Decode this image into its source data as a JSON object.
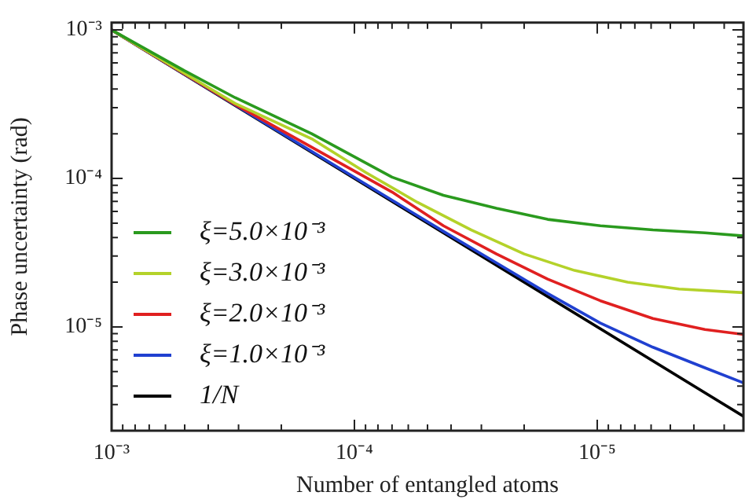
{
  "chart_data": {
    "type": "line",
    "xlabel": "Number of entangled atoms",
    "ylabel": "Phase uncertainty (rad)",
    "log": "xy",
    "grid": false,
    "legend": "bottom left",
    "marker": "none",
    "line_style": "solid",
    "xlim": [
      0.001,
      2.5e-06
    ],
    "ylim": [
      2e-06,
      0.00112
    ],
    "xticks": [
      {
        "value": 0.001,
        "label": "10⁻³"
      },
      {
        "value": 0.0009,
        "label": null
      },
      {
        "value": 0.0008,
        "label": null
      },
      {
        "value": 0.0007,
        "label": null
      },
      {
        "value": 0.0006,
        "label": null
      },
      {
        "value": 0.0005,
        "label": null
      },
      {
        "value": 0.0004,
        "label": null
      },
      {
        "value": 0.0003,
        "label": null
      },
      {
        "value": 0.0002,
        "label": null
      },
      {
        "value": 0.0001,
        "label": "10⁻⁴"
      },
      {
        "value": 9e-05,
        "label": null
      },
      {
        "value": 8e-05,
        "label": null
      },
      {
        "value": 7e-05,
        "label": null
      },
      {
        "value": 6e-05,
        "label": null
      },
      {
        "value": 5e-05,
        "label": null
      },
      {
        "value": 4e-05,
        "label": null
      },
      {
        "value": 3e-05,
        "label": null
      },
      {
        "value": 2e-05,
        "label": null
      },
      {
        "value": 1e-05,
        "label": "10⁻⁵"
      },
      {
        "value": 9e-06,
        "label": null
      },
      {
        "value": 8e-06,
        "label": null
      },
      {
        "value": 7e-06,
        "label": null
      },
      {
        "value": 6e-06,
        "label": null
      },
      {
        "value": 5e-06,
        "label": null
      },
      {
        "value": 4e-06,
        "label": null
      },
      {
        "value": 3e-06,
        "label": null
      }
    ],
    "yticks": [
      {
        "value": 0.001,
        "label": "10⁻³"
      },
      {
        "value": 0.0009,
        "label": null
      },
      {
        "value": 0.0008,
        "label": null
      },
      {
        "value": 0.0007,
        "label": null
      },
      {
        "value": 0.0006,
        "label": null
      },
      {
        "value": 0.0005,
        "label": null
      },
      {
        "value": 0.0004,
        "label": null
      },
      {
        "value": 0.0003,
        "label": null
      },
      {
        "value": 0.0002,
        "label": null
      },
      {
        "value": 0.0001,
        "label": "10⁻⁴"
      },
      {
        "value": 9e-05,
        "label": null
      },
      {
        "value": 8e-05,
        "label": null
      },
      {
        "value": 7e-05,
        "label": null
      },
      {
        "value": 6e-05,
        "label": null
      },
      {
        "value": 5e-05,
        "label": null
      },
      {
        "value": 4e-05,
        "label": null
      },
      {
        "value": 3e-05,
        "label": null
      },
      {
        "value": 2e-05,
        "label": null
      },
      {
        "value": 1e-05,
        "label": "10⁻⁵"
      },
      {
        "value": 9e-06,
        "label": null
      },
      {
        "value": 8e-06,
        "label": null
      },
      {
        "value": 7e-06,
        "label": null
      },
      {
        "value": 6e-06,
        "label": null
      },
      {
        "value": 5e-06,
        "label": null
      },
      {
        "value": 4e-06,
        "label": null
      },
      {
        "value": 3e-06,
        "label": null
      },
      {
        "value": 2e-06,
        "label": null
      }
    ],
    "series": [
      {
        "name": "ξ=5.0×10⁻³",
        "color": "#2a9a1e",
        "x": [
          0.001,
          0.0005,
          0.00031,
          0.00015,
          7e-05,
          4.3e-05,
          2.6e-05,
          1.6e-05,
          9.7e-06,
          5.9e-06,
          3.6e-06,
          2.5e-06
        ],
        "values": [
          0.001,
          0.00053,
          0.00035,
          0.0002,
          0.000102,
          7.7e-05,
          6.3e-05,
          5.3e-05,
          4.8e-05,
          4.5e-05,
          4.3e-05,
          4.1e-05
        ]
      },
      {
        "name": "ξ=3.0×10⁻³",
        "color": "#b4d22a",
        "x": [
          0.001,
          0.00031,
          0.00015,
          9e-05,
          5.5e-05,
          3.3e-05,
          2e-05,
          1.24e-05,
          7.5e-06,
          4.6e-06,
          2.5e-06
        ],
        "values": [
          0.001,
          0.00032,
          0.000185,
          0.00011,
          6.9e-05,
          4.5e-05,
          3.1e-05,
          2.4e-05,
          2e-05,
          1.8e-05,
          1.7e-05
        ]
      },
      {
        "name": "ξ=2.0×10⁻³",
        "color": "#e02020",
        "x": [
          0.001,
          0.00031,
          7e-05,
          4.3e-05,
          2.6e-05,
          1.6e-05,
          9.7e-06,
          5.9e-06,
          3.6e-06,
          2.5e-06
        ],
        "values": [
          0.001,
          0.000315,
          8.1e-05,
          4.8e-05,
          3.1e-05,
          2.1e-05,
          1.5e-05,
          1.14e-05,
          9.6e-06,
          8.9e-06
        ]
      },
      {
        "name": "ξ=1.0×10⁻³",
        "color": "#2040d0",
        "x": [
          0.001,
          4.3e-05,
          2.6e-05,
          1.6e-05,
          9.7e-06,
          5.9e-06,
          3.6e-06,
          2.5e-06
        ],
        "values": [
          0.001,
          4.4e-05,
          2.7e-05,
          1.68e-05,
          1.06e-05,
          7.3e-06,
          5.3e-06,
          4.2e-06
        ]
      },
      {
        "name": "1/N",
        "color": "#000000",
        "x": [
          0.001,
          2.5e-06
        ],
        "values": [
          0.001,
          2.5e-06
        ]
      }
    ]
  }
}
